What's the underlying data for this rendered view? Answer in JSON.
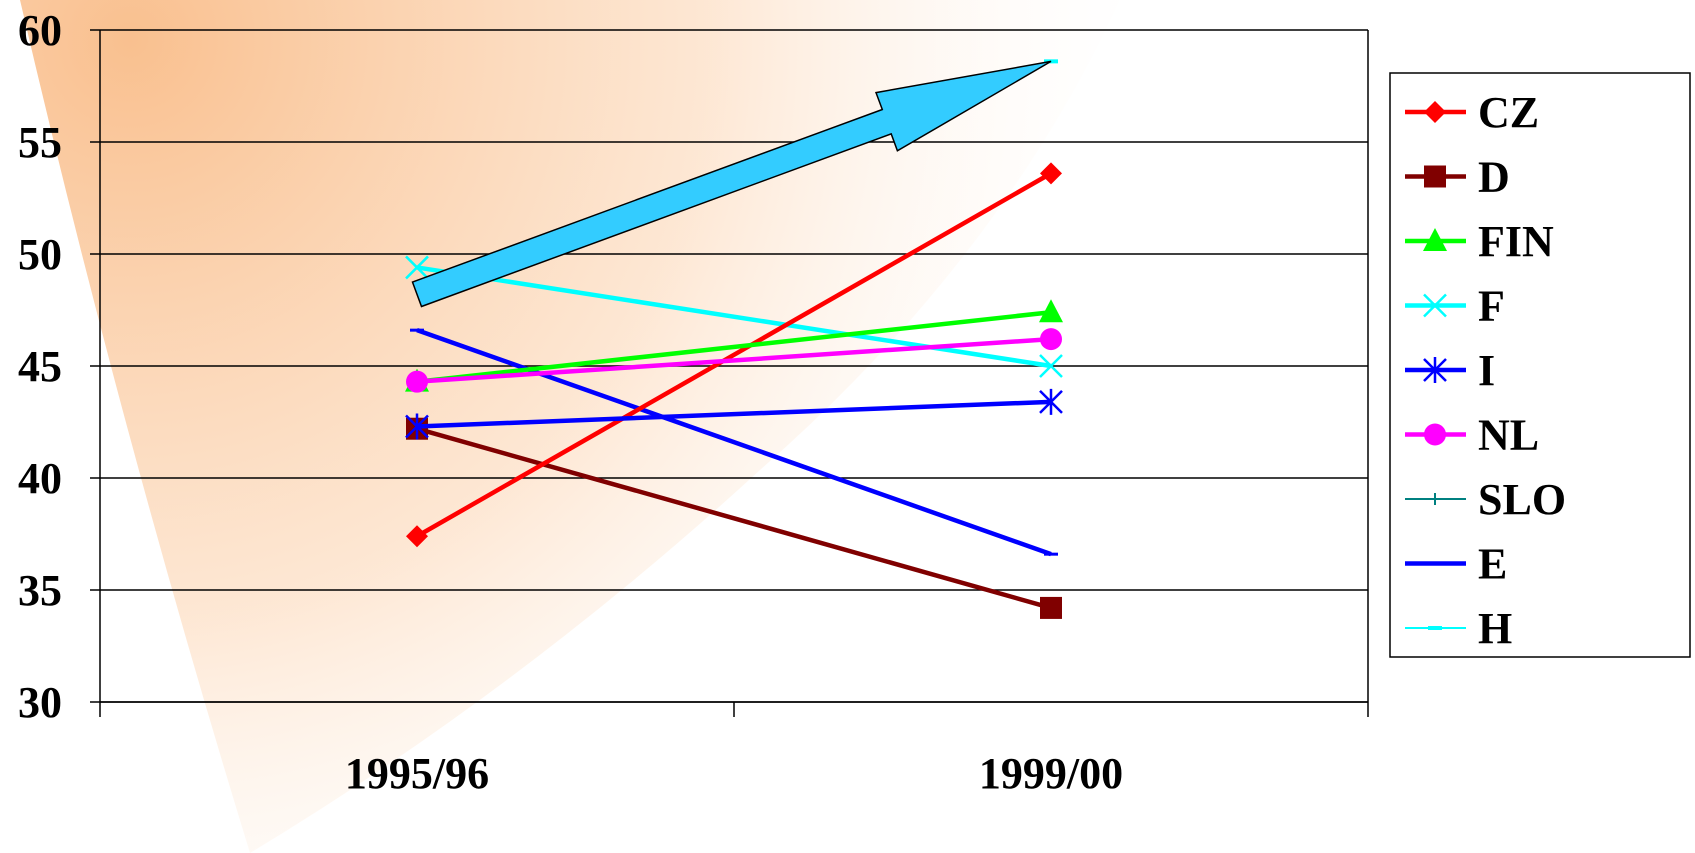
{
  "chart_data": {
    "type": "line",
    "categories": [
      "1995/96",
      "1999/00"
    ],
    "ylim": [
      30,
      60
    ],
    "yticks": [
      30,
      35,
      40,
      45,
      50,
      55,
      60
    ],
    "grid": true,
    "legend_position": "right",
    "series": [
      {
        "name": "CZ",
        "values": [
          37.4,
          53.6
        ],
        "color": "#ff0000",
        "marker": "diamond"
      },
      {
        "name": "D",
        "values": [
          42.2,
          34.2
        ],
        "color": "#800000",
        "marker": "square"
      },
      {
        "name": "FIN",
        "values": [
          44.3,
          47.4
        ],
        "color": "#00ff00",
        "marker": "triangle"
      },
      {
        "name": "F",
        "values": [
          49.4,
          45.0
        ],
        "color": "#00ffff",
        "marker": "x"
      },
      {
        "name": "I",
        "values": [
          42.3,
          43.4
        ],
        "color": "#0000ff",
        "marker": "star"
      },
      {
        "name": "NL",
        "values": [
          44.3,
          46.2
        ],
        "color": "#ff00ff",
        "marker": "circle"
      },
      {
        "name": "SLO",
        "values": [
          null,
          null
        ],
        "color": "#008080",
        "marker": "plus"
      },
      {
        "name": "E",
        "values": [
          46.6,
          36.6
        ],
        "color": "#0000ff",
        "marker": "none"
      },
      {
        "name": "H",
        "values": [
          null,
          58.6
        ],
        "color": "#00ffff",
        "marker": "dash"
      }
    ],
    "annotation_arrow": {
      "from": [
        0.0,
        48.2
      ],
      "to": [
        1.0,
        58.6
      ],
      "color": "#33ccff"
    },
    "background_gradient_color": "#f9c08f"
  }
}
